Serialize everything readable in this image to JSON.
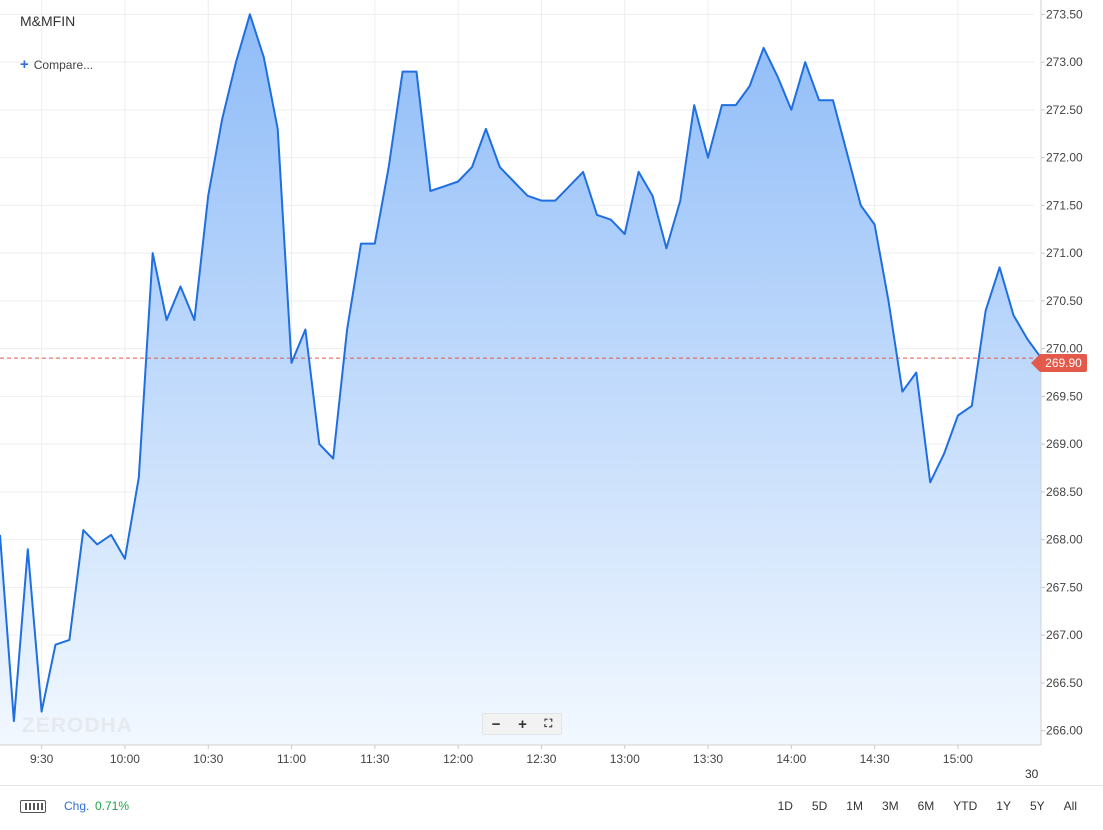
{
  "symbol": "M&MFIN",
  "compare_label": "Compare...",
  "watermark": "ZERODHA",
  "zoom": {
    "out": "−",
    "in": "+",
    "fullscreen": "⛶"
  },
  "current_price_label": "269.90",
  "date_label": "30",
  "footer": {
    "change_label": "Chg.",
    "change_value": "0.71%",
    "ranges": [
      "1D",
      "5D",
      "1M",
      "3M",
      "6M",
      "YTD",
      "1Y",
      "5Y",
      "All"
    ]
  },
  "colors": {
    "line": "#1f6fe0",
    "area_top": "#8fbcf8",
    "area_bottom": "#f2f8ff",
    "price_tag": "#e3594a",
    "change_positive": "#21a34a"
  },
  "chart_data": {
    "type": "area",
    "x_tick_labels": [
      "9:30",
      "10:00",
      "10:30",
      "11:00",
      "11:30",
      "12:00",
      "12:30",
      "13:00",
      "13:30",
      "14:00",
      "14:30",
      "15:00"
    ],
    "y_tick_labels": [
      "266.00",
      "266.50",
      "267.00",
      "267.50",
      "268.00",
      "268.50",
      "269.00",
      "269.50",
      "270.00",
      "270.50",
      "271.00",
      "271.50",
      "272.00",
      "272.50",
      "273.00",
      "273.50"
    ],
    "ylim": [
      265.85,
      273.65
    ],
    "current_price": 269.9,
    "grid": true,
    "x": [
      "9:15",
      "9:20",
      "9:25",
      "9:30",
      "9:35",
      "9:40",
      "9:45",
      "9:50",
      "9:55",
      "10:00",
      "10:05",
      "10:10",
      "10:15",
      "10:20",
      "10:25",
      "10:30",
      "10:35",
      "10:40",
      "10:45",
      "10:50",
      "10:55",
      "11:00",
      "11:05",
      "11:10",
      "11:15",
      "11:20",
      "11:25",
      "11:30",
      "11:35",
      "11:40",
      "11:45",
      "11:50",
      "11:55",
      "12:00",
      "12:05",
      "12:10",
      "12:15",
      "12:20",
      "12:25",
      "12:30",
      "12:35",
      "12:40",
      "12:45",
      "12:50",
      "12:55",
      "13:00",
      "13:05",
      "13:10",
      "13:15",
      "13:20",
      "13:25",
      "13:30",
      "13:35",
      "13:40",
      "13:45",
      "13:50",
      "13:55",
      "14:00",
      "14:05",
      "14:10",
      "14:15",
      "14:20",
      "14:25",
      "14:30",
      "14:35",
      "14:40",
      "14:45",
      "14:50",
      "14:55",
      "15:00",
      "15:05",
      "15:10",
      "15:15",
      "15:20",
      "15:25",
      "15:30"
    ],
    "values": [
      268.05,
      266.1,
      267.9,
      266.2,
      266.9,
      266.95,
      268.1,
      267.95,
      268.05,
      267.8,
      268.65,
      271.0,
      270.3,
      270.65,
      270.3,
      271.6,
      272.4,
      273.0,
      273.5,
      273.05,
      272.3,
      269.85,
      270.2,
      269.0,
      268.85,
      270.2,
      271.1,
      271.1,
      271.9,
      272.9,
      272.9,
      271.65,
      271.7,
      271.75,
      271.9,
      272.3,
      271.9,
      271.75,
      271.6,
      271.55,
      271.55,
      271.7,
      271.85,
      271.4,
      271.35,
      271.2,
      271.85,
      271.6,
      271.05,
      271.55,
      272.55,
      272.0,
      272.55,
      272.55,
      272.75,
      273.15,
      272.85,
      272.5,
      273.0,
      272.6,
      272.6,
      272.05,
      271.5,
      271.3,
      270.5,
      269.55,
      269.75,
      268.6,
      268.9,
      269.3,
      269.4,
      270.4,
      270.85,
      270.35,
      270.1,
      269.9
    ]
  }
}
